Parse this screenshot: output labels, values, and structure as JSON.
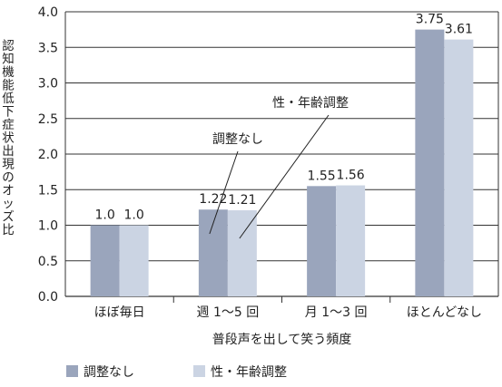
{
  "chart_data": {
    "type": "bar",
    "categories": [
      "ほぼ毎日",
      "週 1～5 回",
      "月 1～3 回",
      "ほとんどなし"
    ],
    "series": [
      {
        "name": "調整なし",
        "values": [
          1.0,
          1.22,
          1.55,
          3.75
        ],
        "value_labels": [
          "1.0",
          "1.22",
          "1.55",
          "3.75"
        ],
        "color": "#9aa5bc"
      },
      {
        "name": "性・年齢調整",
        "values": [
          1.0,
          1.21,
          1.56,
          3.61
        ],
        "value_labels": [
          "1.0",
          "1.21",
          "1.56",
          "3.61"
        ],
        "color": "#cbd4e3"
      }
    ],
    "xlabel": "普段声を出して笑う頻度",
    "ylabel": "認知機能低下症状出現のオッズ比",
    "ylim": [
      0,
      4.0
    ],
    "yticks": [
      "0.0",
      "0.5",
      "1.0",
      "1.5",
      "2.0",
      "2.5",
      "3.0",
      "3.5",
      "4.0"
    ],
    "grid": true,
    "annotations": [
      {
        "text": "調整なし",
        "series": 0,
        "category": 1
      },
      {
        "text": "性・年齢調整",
        "series": 1,
        "category": 1
      }
    ],
    "legend_position": "bottom-left"
  }
}
